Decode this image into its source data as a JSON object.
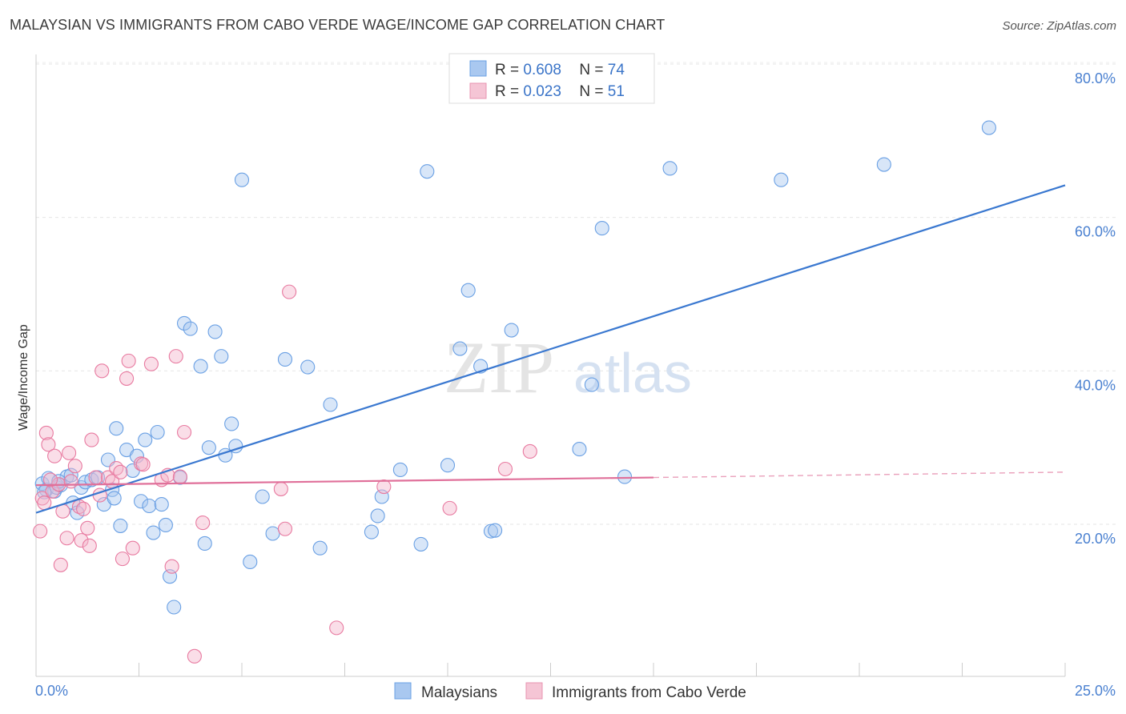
{
  "title": "MALAYSIAN VS IMMIGRANTS FROM CABO VERDE WAGE/INCOME GAP CORRELATION CHART",
  "source": "Source: ZipAtlas.com",
  "watermark": {
    "zip": "ZIP",
    "atlas": "atlas"
  },
  "legend_top": {
    "rows": [
      {
        "r_label": "R = ",
        "r_value": "0.608",
        "n_label": "N = ",
        "n_value": "74"
      },
      {
        "r_label": "R = ",
        "r_value": "0.023",
        "n_label": "N = ",
        "n_value": "51"
      }
    ]
  },
  "legend_bottom": {
    "items": [
      "Malaysians",
      "Immigrants from Cabo Verde"
    ]
  },
  "chart_data": {
    "type": "scatter",
    "xlabel": "",
    "ylabel": "Wage/Income Gap",
    "xlim": [
      0,
      25
    ],
    "ylim": [
      0,
      83
    ],
    "x_tick_labels": [
      "0.0%",
      "25.0%"
    ],
    "y_ticks": [
      20,
      40,
      60,
      80
    ],
    "y_tick_labels": [
      "20.0%",
      "40.0%",
      "60.0%",
      "80.0%"
    ],
    "grid": true,
    "legend_position": "top-center",
    "series": [
      {
        "name": "Malaysians",
        "color": "#6aa0e4",
        "fill": "#a9c8f0",
        "trend": {
          "x": [
            0,
            25
          ],
          "y": [
            21.5,
            64.2
          ]
        },
        "points": [
          [
            0.15,
            25.3
          ],
          [
            0.25,
            24.5
          ],
          [
            0.3,
            26
          ],
          [
            0.45,
            24.3
          ],
          [
            0.5,
            24.8
          ],
          [
            0.6,
            25.1
          ],
          [
            0.75,
            26.2
          ],
          [
            0.85,
            26.4
          ],
          [
            0.9,
            22.8
          ],
          [
            1.0,
            21.5
          ],
          [
            1.1,
            24.8
          ],
          [
            1.2,
            25.5
          ],
          [
            1.35,
            25.8
          ],
          [
            1.5,
            26.1
          ],
          [
            1.65,
            22.6
          ],
          [
            1.75,
            28.4
          ],
          [
            1.85,
            24.5
          ],
          [
            1.95,
            32.5
          ],
          [
            2.05,
            19.8
          ],
          [
            2.2,
            29.7
          ],
          [
            2.35,
            27
          ],
          [
            2.45,
            28.9
          ],
          [
            2.55,
            23
          ],
          [
            2.65,
            31
          ],
          [
            2.75,
            22.4
          ],
          [
            2.85,
            18.9
          ],
          [
            2.95,
            32
          ],
          [
            3.05,
            22.6
          ],
          [
            3.15,
            19.9
          ],
          [
            3.25,
            13.2
          ],
          [
            3.35,
            9.2
          ],
          [
            3.5,
            26.1
          ],
          [
            3.6,
            46.2
          ],
          [
            3.75,
            45.5
          ],
          [
            4.0,
            40.6
          ],
          [
            4.1,
            17.5
          ],
          [
            4.2,
            30
          ],
          [
            4.35,
            45.1
          ],
          [
            4.5,
            41.9
          ],
          [
            4.6,
            29
          ],
          [
            4.75,
            33.1
          ],
          [
            4.85,
            30.2
          ],
          [
            5.0,
            64.9
          ],
          [
            5.2,
            15.1
          ],
          [
            5.5,
            23.6
          ],
          [
            5.75,
            18.8
          ],
          [
            6.05,
            41.5
          ],
          [
            6.6,
            40.5
          ],
          [
            6.9,
            16.9
          ],
          [
            7.15,
            35.6
          ],
          [
            8.15,
            19
          ],
          [
            8.3,
            21.1
          ],
          [
            8.4,
            23.6
          ],
          [
            8.85,
            27.1
          ],
          [
            9.35,
            17.4
          ],
          [
            9.5,
            66
          ],
          [
            10.0,
            27.7
          ],
          [
            10.3,
            42.9
          ],
          [
            10.5,
            50.5
          ],
          [
            10.8,
            40.6
          ],
          [
            11.05,
            19.1
          ],
          [
            11.15,
            19.2
          ],
          [
            11.55,
            45.3
          ],
          [
            13.2,
            29.8
          ],
          [
            13.5,
            38.2
          ],
          [
            13.75,
            58.6
          ],
          [
            14.3,
            26.2
          ],
          [
            15.4,
            66.4
          ],
          [
            18.1,
            64.9
          ],
          [
            20.6,
            66.9
          ],
          [
            23.15,
            71.7
          ],
          [
            0.2,
            24.2
          ],
          [
            0.55,
            25.6
          ],
          [
            1.9,
            23.4
          ]
        ]
      },
      {
        "name": "Immigrants from Cabo Verde",
        "color": "#e87aa0",
        "fill": "#f5b5cb",
        "trend": {
          "x": [
            0,
            15
          ],
          "y": [
            25.1,
            26.1
          ]
        },
        "trend_dashed": {
          "x": [
            15,
            25
          ],
          "y": [
            26.1,
            26.8
          ]
        },
        "points": [
          [
            0.1,
            19.1
          ],
          [
            0.15,
            23.4
          ],
          [
            0.2,
            22.8
          ],
          [
            0.25,
            31.9
          ],
          [
            0.3,
            30.4
          ],
          [
            0.4,
            24.3
          ],
          [
            0.45,
            28.9
          ],
          [
            0.55,
            25.2
          ],
          [
            0.6,
            14.7
          ],
          [
            0.65,
            21.7
          ],
          [
            0.75,
            18.2
          ],
          [
            0.8,
            29.3
          ],
          [
            0.85,
            25.6
          ],
          [
            0.95,
            27.6
          ],
          [
            1.05,
            22.3
          ],
          [
            1.1,
            17.9
          ],
          [
            1.15,
            22
          ],
          [
            1.25,
            19.5
          ],
          [
            1.3,
            17.2
          ],
          [
            1.35,
            31
          ],
          [
            1.45,
            26.1
          ],
          [
            1.6,
            40
          ],
          [
            1.75,
            26.1
          ],
          [
            1.85,
            25.6
          ],
          [
            1.95,
            27.3
          ],
          [
            2.05,
            26.8
          ],
          [
            2.1,
            15.5
          ],
          [
            2.2,
            39
          ],
          [
            2.25,
            41.3
          ],
          [
            2.35,
            16.9
          ],
          [
            2.55,
            27.9
          ],
          [
            2.8,
            40.9
          ],
          [
            3.05,
            25.8
          ],
          [
            3.2,
            26.4
          ],
          [
            3.3,
            14.5
          ],
          [
            3.4,
            41.9
          ],
          [
            3.5,
            26.2
          ],
          [
            3.6,
            32
          ],
          [
            3.85,
            2.8
          ],
          [
            4.05,
            20.2
          ],
          [
            5.95,
            24.6
          ],
          [
            6.05,
            19.4
          ],
          [
            6.15,
            50.3
          ],
          [
            7.3,
            6.5
          ],
          [
            8.45,
            24.9
          ],
          [
            10.05,
            22.1
          ],
          [
            11.4,
            27.2
          ],
          [
            12.0,
            29.5
          ],
          [
            0.35,
            25.8
          ],
          [
            1.55,
            23.8
          ],
          [
            2.6,
            27.8
          ]
        ]
      }
    ]
  }
}
